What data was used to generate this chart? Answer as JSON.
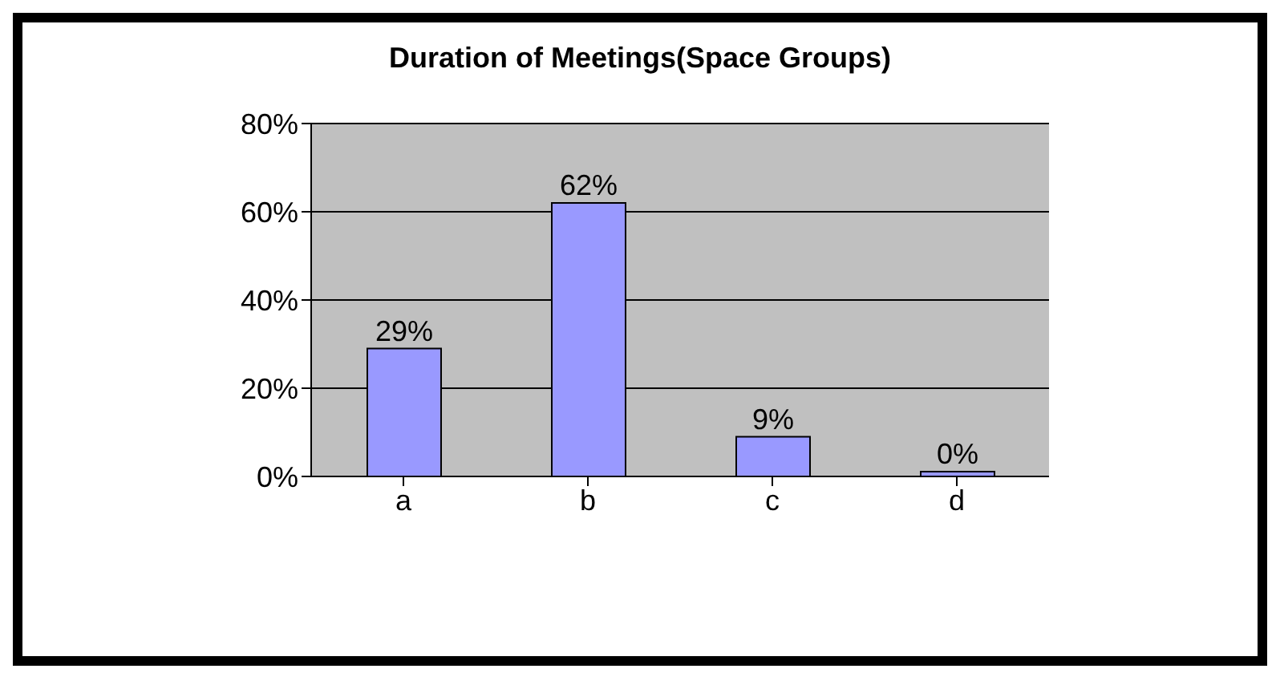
{
  "chart_data": {
    "type": "bar",
    "title": "Duration of Meetings(Space Groups)",
    "categories": [
      "a",
      "b",
      "c",
      "d"
    ],
    "values": [
      29,
      62,
      9,
      0
    ],
    "value_labels": [
      "29%",
      "62%",
      "9%",
      "0%"
    ],
    "color": "#9999ff",
    "ylim": [
      0,
      80
    ],
    "yticks": [
      {
        "value": 0,
        "label": "0%"
      },
      {
        "value": 20,
        "label": "20%"
      },
      {
        "value": 40,
        "label": "40%"
      },
      {
        "value": 60,
        "label": "60%"
      },
      {
        "value": 80,
        "label": "80%"
      }
    ],
    "grid": "y"
  }
}
